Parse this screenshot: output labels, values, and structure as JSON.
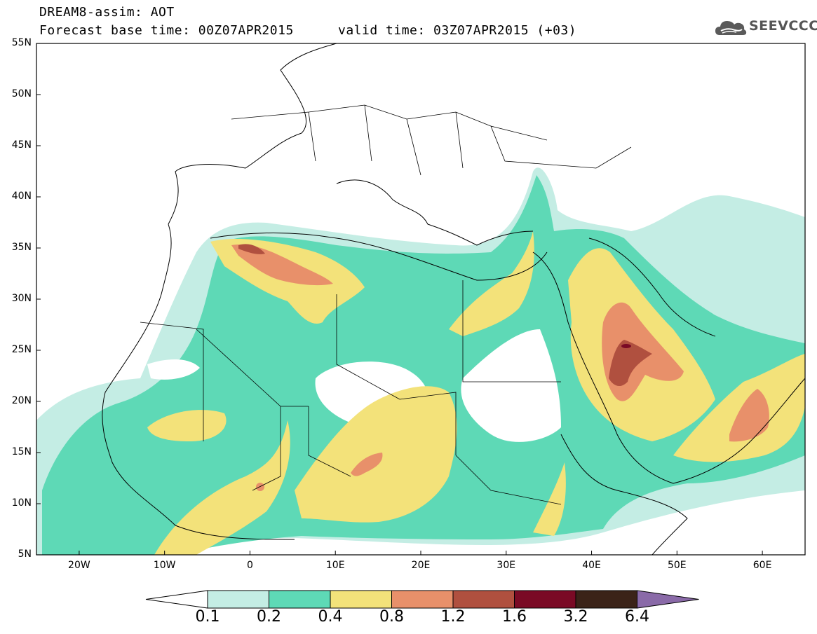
{
  "header": {
    "line1": "DREAM8-assim: AOT",
    "line2": "Forecast base time: 00Z07APR2015",
    "line3": "valid time: 03Z07APR2015 (+03)",
    "logo_text": "SEEVCCC"
  },
  "map": {
    "lat_labels": [
      "55N",
      "50N",
      "45N",
      "40N",
      "35N",
      "30N",
      "25N",
      "20N",
      "15N",
      "10N",
      "5N"
    ],
    "lon_labels": [
      "20W",
      "10W",
      "0",
      "10E",
      "20E",
      "30E",
      "40E",
      "50E",
      "60E"
    ],
    "extent": {
      "lon_min": -25,
      "lon_max": 65,
      "lat_min": 5,
      "lat_max": 55
    },
    "field": "AOT"
  },
  "colorbar": {
    "labels": [
      "0.1",
      "0.2",
      "0.4",
      "0.8",
      "1.2",
      "1.6",
      "3.2",
      "6.4"
    ],
    "colors": [
      "#ffffff",
      "#c4ede4",
      "#5ed9b6",
      "#f3e27a",
      "#e8906a",
      "#b0503f",
      "#7a0a25",
      "#3b2318",
      "#8a6aa8"
    ]
  },
  "colors": {
    "c1": "#c4ede4",
    "c2": "#5ed9b6",
    "c3": "#f3e27a",
    "c4": "#e8906a",
    "c5": "#b0503f",
    "c6": "#7a0a25"
  }
}
